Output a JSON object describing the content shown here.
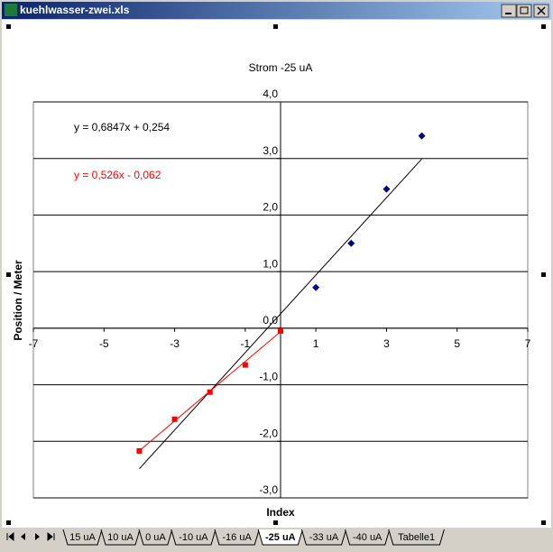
{
  "window": {
    "title": "kuehlwasser-zwei.xls"
  },
  "sheet_tabs": {
    "tabs": [
      "15 uA",
      "10 uA",
      "0 uA",
      "-10 uA",
      "-16 uA",
      "-25 uA",
      "-33 uA",
      "-40 uA",
      "Tabelle1"
    ],
    "active": "-25 uA"
  },
  "chart_data": {
    "type": "scatter",
    "title": "Strom  -25 uA",
    "x_label": "Index",
    "y_label": "Position / Meter",
    "xlim": [
      -7,
      7
    ],
    "xticks": [
      -7,
      -5,
      -3,
      -1,
      1,
      3,
      5,
      7
    ],
    "ylim": [
      -3,
      4
    ],
    "yticks": [
      {
        "value": -3,
        "label": "-3,0"
      },
      {
        "value": -2,
        "label": "-2,0"
      },
      {
        "value": -1,
        "label": "-1,0"
      },
      {
        "value": 0,
        "label": "0,0"
      },
      {
        "value": 1,
        "label": "1,0"
      },
      {
        "value": 2,
        "label": "2,0"
      },
      {
        "value": 3,
        "label": "3,0"
      },
      {
        "value": 4,
        "label": "4,0"
      }
    ],
    "grid": true,
    "series": [
      {
        "marker": "diamond",
        "color": "#000080",
        "x": [
          1,
          2,
          3,
          4
        ],
        "values": [
          0.72,
          1.5,
          2.46,
          3.4
        ]
      },
      {
        "marker": "square",
        "color": "#ff0000",
        "x": [
          -4,
          -3,
          -2,
          -1,
          0
        ],
        "values": [
          -2.17,
          -1.61,
          -1.13,
          -0.65,
          -0.05
        ]
      }
    ],
    "trendlines": [
      {
        "label": "y = 0,6847x + 0,254",
        "color": "#000000",
        "x": [
          -4,
          4
        ],
        "values": [
          -2.485,
          2.993
        ]
      },
      {
        "label": "y = 0,526x - 0,062",
        "color": "#ff0000",
        "x": [
          -4,
          0
        ],
        "values": [
          -2.166,
          -0.062
        ]
      }
    ]
  }
}
